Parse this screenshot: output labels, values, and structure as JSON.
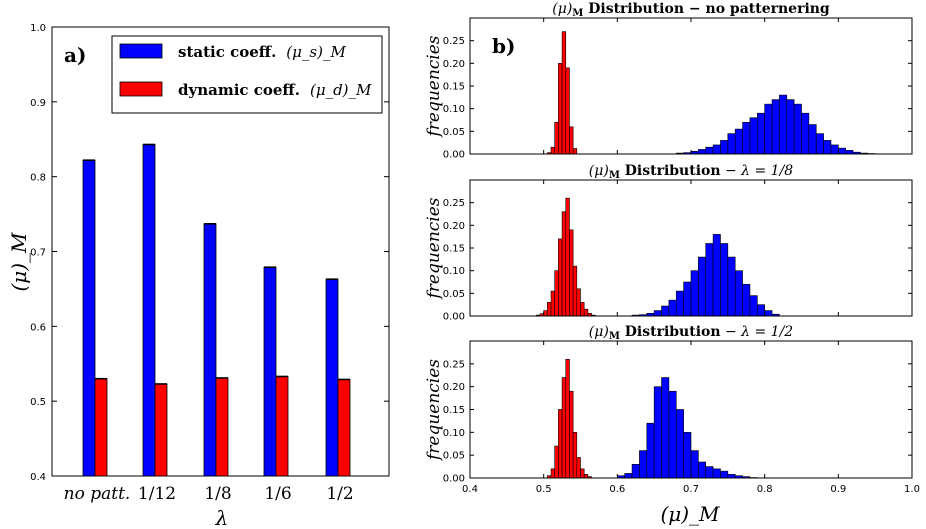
{
  "chart_data": [
    {
      "type": "bar",
      "panel_label": "a)",
      "categories": [
        "no patt.",
        "1/12",
        "1/8",
        "1/6",
        "1/2"
      ],
      "xlabel": "λ",
      "ylabel": "(μ)_M",
      "ylim": [
        0.4,
        1.0
      ],
      "yticks": [
        "0.4",
        "0.5",
        "0.6",
        "0.7",
        "0.8",
        "0.9",
        "1.0"
      ],
      "legend_position": "top-right",
      "series": [
        {
          "name": "static coeff.",
          "legend_math": "(μ_s)_M",
          "color": "#0000ff",
          "values": [
            0.822,
            0.843,
            0.737,
            0.679,
            0.663
          ]
        },
        {
          "name": "dynamic coeff.",
          "legend_math": "(μ_d)_M",
          "color": "#ff0000",
          "values": [
            0.53,
            0.523,
            0.531,
            0.533,
            0.529
          ]
        }
      ]
    },
    {
      "type": "bar",
      "panel_label": "b)",
      "subtype": "histogram-stack",
      "xlabel": "(μ)_M",
      "ylabel": "frequencies",
      "xlim": [
        0.4,
        1.0
      ],
      "ylim": [
        0,
        0.3
      ],
      "xticks": [
        "0.4",
        "0.5",
        "0.6",
        "0.7",
        "0.8",
        "0.9",
        "1.0"
      ],
      "yticks": [
        "0.00",
        "0.05",
        "0.10",
        "0.15",
        "0.20",
        "0.25"
      ],
      "panels": [
        {
          "title_prefix": "(μ)",
          "title_sub": "M",
          "title_bold": " Distribution",
          "title_rest": "  −  no patternering",
          "red": {
            "color": "#ff0000",
            "bin_width": 0.005,
            "x": [
              0.505,
              0.51,
              0.515,
              0.52,
              0.525,
              0.53,
              0.535,
              0.54
            ],
            "y": [
              0.003,
              0.015,
              0.07,
              0.2,
              0.27,
              0.19,
              0.06,
              0.012
            ]
          },
          "blue": {
            "color": "#0000ff",
            "bin_width": 0.01,
            "x": [
              0.68,
              0.69,
              0.7,
              0.71,
              0.72,
              0.73,
              0.74,
              0.75,
              0.76,
              0.77,
              0.78,
              0.79,
              0.8,
              0.81,
              0.82,
              0.83,
              0.84,
              0.85,
              0.86,
              0.87,
              0.88,
              0.89,
              0.9,
              0.91,
              0.92,
              0.93,
              0.94
            ],
            "y": [
              0.002,
              0.003,
              0.006,
              0.01,
              0.015,
              0.02,
              0.03,
              0.045,
              0.055,
              0.07,
              0.08,
              0.09,
              0.11,
              0.12,
              0.13,
              0.12,
              0.11,
              0.09,
              0.065,
              0.045,
              0.03,
              0.02,
              0.013,
              0.008,
              0.004,
              0.002,
              0.001
            ]
          }
        },
        {
          "title_prefix": "(μ)",
          "title_sub": "M",
          "title_bold": " Distribution",
          "title_rest": "  −  λ = 1/8",
          "red": {
            "color": "#ff0000",
            "bin_width": 0.005,
            "x": [
              0.49,
              0.495,
              0.5,
              0.505,
              0.51,
              0.515,
              0.52,
              0.525,
              0.53,
              0.535,
              0.54,
              0.545,
              0.55,
              0.555,
              0.56,
              0.565
            ],
            "y": [
              0.002,
              0.005,
              0.012,
              0.03,
              0.055,
              0.1,
              0.17,
              0.23,
              0.26,
              0.19,
              0.11,
              0.06,
              0.03,
              0.015,
              0.006,
              0.002
            ]
          },
          "blue": {
            "color": "#0000ff",
            "bin_width": 0.01,
            "x": [
              0.62,
              0.63,
              0.64,
              0.65,
              0.66,
              0.67,
              0.68,
              0.69,
              0.7,
              0.71,
              0.72,
              0.73,
              0.74,
              0.75,
              0.76,
              0.77,
              0.78,
              0.79,
              0.8,
              0.81
            ],
            "y": [
              0.002,
              0.003,
              0.006,
              0.012,
              0.022,
              0.035,
              0.055,
              0.075,
              0.1,
              0.13,
              0.16,
              0.18,
              0.16,
              0.13,
              0.1,
              0.07,
              0.045,
              0.025,
              0.012,
              0.004
            ]
          }
        },
        {
          "title_prefix": "(μ)",
          "title_sub": "M",
          "title_bold": " Distribution",
          "title_rest": "  −  λ = 1/2",
          "red": {
            "color": "#ff0000",
            "bin_width": 0.005,
            "x": [
              0.505,
              0.51,
              0.515,
              0.52,
              0.525,
              0.53,
              0.535,
              0.54,
              0.545,
              0.55,
              0.555,
              0.56
            ],
            "y": [
              0.005,
              0.02,
              0.07,
              0.15,
              0.22,
              0.26,
              0.19,
              0.1,
              0.045,
              0.02,
              0.008,
              0.003
            ]
          },
          "blue": {
            "color": "#0000ff",
            "bin_width": 0.01,
            "x": [
              0.6,
              0.61,
              0.62,
              0.63,
              0.64,
              0.65,
              0.66,
              0.67,
              0.68,
              0.69,
              0.7,
              0.71,
              0.72,
              0.73,
              0.74,
              0.75,
              0.76,
              0.77,
              0.78
            ],
            "y": [
              0.005,
              0.01,
              0.03,
              0.06,
              0.12,
              0.2,
              0.22,
              0.19,
              0.15,
              0.1,
              0.06,
              0.035,
              0.025,
              0.02,
              0.015,
              0.008,
              0.005,
              0.003,
              0.001
            ]
          }
        }
      ]
    }
  ]
}
